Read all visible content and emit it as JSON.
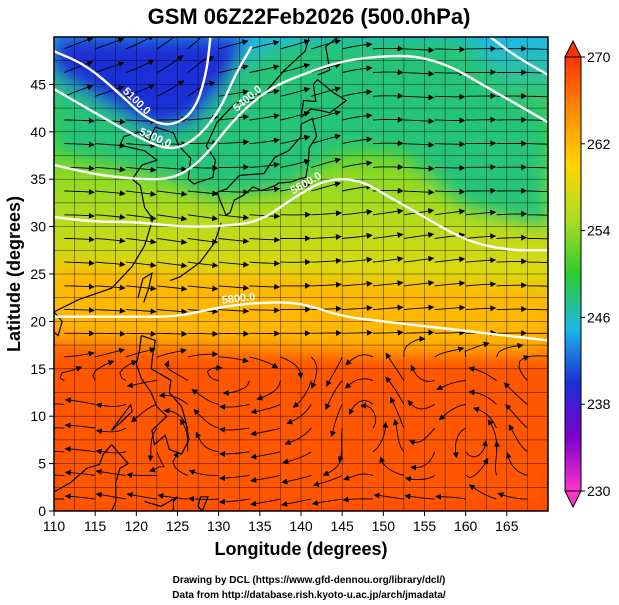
{
  "chart_data": {
    "type": "heatmap",
    "title": "GSM 06Z22Feb2026 (500.0hPa)",
    "xlabel": "Longitude (degrees)",
    "ylabel": "Latitude  (degrees)",
    "xlim": [
      110,
      170
    ],
    "ylim": [
      0,
      50
    ],
    "xticks": [
      "110",
      "115",
      "120",
      "125",
      "130",
      "135",
      "140",
      "145",
      "150",
      "155",
      "160",
      "165"
    ],
    "yticks": [
      "0",
      "5",
      "10",
      "15",
      "20",
      "25",
      "30",
      "35",
      "40",
      "45"
    ],
    "colorbar": {
      "min": 230,
      "max": 270,
      "ticks": [
        "230",
        "238",
        "246",
        "254",
        "262",
        "270"
      ],
      "colors": [
        "#ff33cc",
        "#7a00cc",
        "#1a2fd6",
        "#1fb8e6",
        "#2ecc2e",
        "#aadd22",
        "#ffd500",
        "#ff8c00",
        "#ff3300"
      ]
    },
    "contours": [
      {
        "label": "5100.0",
        "points": [
          [
            110,
            48.5
          ],
          [
            114,
            47
          ],
          [
            118,
            44
          ],
          [
            121,
            41.5
          ],
          [
            124,
            40.5
          ],
          [
            127,
            42
          ],
          [
            128.5,
            46
          ],
          [
            129,
            50
          ]
        ]
      },
      {
        "label": "5200.0",
        "points": [
          [
            110,
            44.5
          ],
          [
            115,
            42
          ],
          [
            120,
            39.5
          ],
          [
            124,
            38
          ],
          [
            127,
            39
          ],
          [
            130,
            42
          ],
          [
            132,
            46
          ],
          [
            134,
            49
          ]
        ]
      },
      {
        "label": "5400.0",
        "points": [
          [
            110,
            36.5
          ],
          [
            115,
            35.5
          ],
          [
            120,
            35
          ],
          [
            124.5,
            35
          ],
          [
            128,
            37
          ],
          [
            132,
            41.5
          ],
          [
            136,
            44.5
          ],
          [
            140,
            46
          ],
          [
            145,
            47.5
          ],
          [
            150,
            48
          ],
          [
            154,
            48
          ],
          [
            158,
            47
          ],
          [
            162,
            45
          ],
          [
            166,
            43
          ],
          [
            170,
            41
          ]
        ]
      },
      {
        "label": "5600.0",
        "points": [
          [
            110,
            31
          ],
          [
            115,
            30.5
          ],
          [
            120,
            30.5
          ],
          [
            125,
            30
          ],
          [
            130,
            30
          ],
          [
            135,
            30.5
          ],
          [
            139,
            33
          ],
          [
            143,
            35
          ],
          [
            147,
            35
          ],
          [
            151,
            33
          ],
          [
            155,
            31
          ],
          [
            160,
            28.5
          ],
          [
            165,
            27.5
          ],
          [
            170,
            27.5
          ]
        ]
      },
      {
        "label": "5800.0",
        "points": [
          [
            110,
            20.5
          ],
          [
            115,
            20.5
          ],
          [
            120,
            20.5
          ],
          [
            125,
            20.5
          ],
          [
            130,
            21.5
          ],
          [
            135,
            22
          ],
          [
            140,
            22
          ],
          [
            145,
            20.5
          ],
          [
            150,
            20
          ],
          [
            155,
            19.5
          ],
          [
            160,
            19
          ],
          [
            165,
            18.5
          ],
          [
            170,
            18
          ]
        ]
      },
      {
        "label": "",
        "points": [
          [
            163,
            50
          ],
          [
            166,
            48
          ],
          [
            170,
            46
          ]
        ]
      }
    ],
    "temperature_zones": [
      {
        "value": 233,
        "points": [
          [
            114,
            50
          ],
          [
            128.5,
            50
          ],
          [
            127,
            44
          ],
          [
            124,
            42
          ],
          [
            120,
            43
          ],
          [
            117,
            46
          ]
        ]
      },
      {
        "value": 240,
        "points": [
          [
            110,
            50
          ],
          [
            133,
            50
          ],
          [
            131,
            45
          ],
          [
            127,
            40
          ],
          [
            122,
            39
          ],
          [
            116,
            42
          ],
          [
            110,
            45
          ]
        ]
      },
      {
        "value": 248,
        "points": [
          [
            110,
            46
          ],
          [
            116,
            43
          ],
          [
            122,
            40
          ],
          [
            127,
            41
          ],
          [
            132,
            46
          ],
          [
            137,
            49
          ],
          [
            145,
            50
          ],
          [
            160,
            50
          ],
          [
            165,
            44
          ],
          [
            170,
            42
          ],
          [
            170,
            30
          ],
          [
            160,
            32
          ],
          [
            152,
            38
          ],
          [
            145,
            38
          ],
          [
            138,
            34
          ],
          [
            130,
            33
          ],
          [
            120,
            36
          ],
          [
            110,
            38
          ]
        ]
      },
      {
        "value": 262,
        "points": [
          [
            110,
            26
          ],
          [
            130,
            25
          ],
          [
            150,
            24
          ],
          [
            170,
            23
          ],
          [
            170,
            17
          ],
          [
            150,
            17
          ],
          [
            130,
            18
          ],
          [
            110,
            19
          ]
        ]
      },
      {
        "value": 268,
        "points": [
          [
            110,
            17
          ],
          [
            130,
            16
          ],
          [
            150,
            16
          ],
          [
            170,
            16
          ],
          [
            170,
            0
          ],
          [
            110,
            0
          ]
        ]
      }
    ],
    "credits": [
      "Drawing by DCL (https://www.gfd-dennou.org/library/dcl/)",
      "Data from http://database.rish.kyoto-u.ac.jp/arch/jmadata/"
    ]
  }
}
